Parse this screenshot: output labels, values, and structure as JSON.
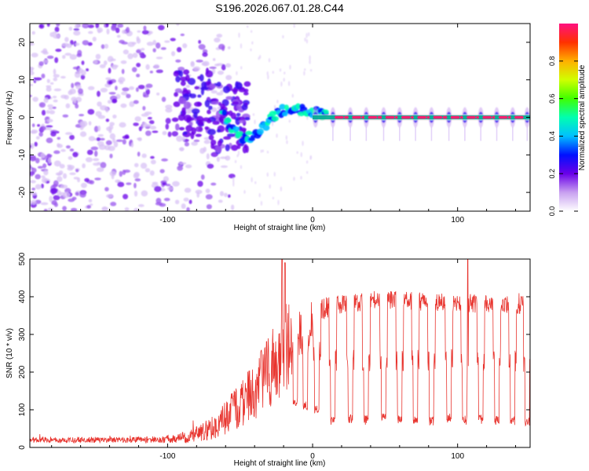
{
  "title": "S196.2026.067.01.28.C44",
  "chart_data": [
    {
      "type": "heatmap",
      "name": "spectrogram",
      "xlabel": "Height of straight line (km)",
      "ylabel": "Frequency (Hz)",
      "xlim": [
        -195,
        150
      ],
      "ylim": [
        -25,
        25
      ],
      "xticks": [
        -100,
        0,
        100
      ],
      "yticks": [
        -20,
        -10,
        0,
        10,
        20
      ],
      "colorbar": {
        "label": "Normalized spectral amplitude",
        "range": [
          0,
          1
        ],
        "ticks": [
          0.0,
          0.2,
          0.4,
          0.6,
          0.8
        ]
      },
      "regions": [
        {
          "description": "scattered purple noise",
          "x_from": -195,
          "x_to": -60,
          "freq_from": -25,
          "freq_to": 25,
          "amplitude": 0.1
        },
        {
          "description": "blue clustered blobs",
          "x_from": -95,
          "x_to": -45,
          "freq_from": -10,
          "freq_to": 10,
          "amplitude": 0.2
        },
        {
          "description": "descending/rising signal",
          "x_from": -60,
          "x_to": -10,
          "freq_from": -8,
          "freq_to": 3,
          "amplitude": 0.45
        },
        {
          "description": "steady signal line near 0 Hz",
          "x_from": 0,
          "x_to": 150,
          "freq_from": -1,
          "freq_to": 1,
          "amplitude": 0.95
        }
      ]
    },
    {
      "type": "line",
      "name": "snr",
      "xlabel": "Height of straight line (km)",
      "ylabel": "SNR (10 * v/v)",
      "xlim": [
        -195,
        150
      ],
      "ylim": [
        0,
        500
      ],
      "xticks": [
        -100,
        0,
        100
      ],
      "yticks": [
        0,
        100,
        200,
        300,
        400,
        500
      ],
      "series": [
        {
          "name": "SNR",
          "color": "#e8352f",
          "x": [
            -195,
            -180,
            -160,
            -140,
            -120,
            -100,
            -90,
            -80,
            -70,
            -60,
            -50,
            -40,
            -30,
            -25,
            -20,
            -15,
            -10,
            -5,
            0,
            10,
            20,
            30,
            40,
            60,
            80,
            100,
            120,
            140,
            150
          ],
          "y_base": [
            20,
            20,
            20,
            20,
            20,
            22,
            25,
            35,
            50,
            80,
            110,
            150,
            200,
            230,
            260,
            280,
            300,
            320,
            340,
            370,
            380,
            385,
            390,
            390,
            385,
            385,
            380,
            380,
            375
          ],
          "noise_amplitude": [
            8,
            8,
            8,
            8,
            8,
            10,
            15,
            20,
            30,
            45,
            60,
            80,
            100,
            110,
            120,
            110,
            90,
            70,
            50,
            30,
            25,
            25,
            25,
            25,
            25,
            25,
            25,
            25,
            25
          ],
          "spikes": [
            {
              "x": -21,
              "y": 500
            },
            {
              "x": -19,
              "y": 490
            },
            {
              "x": 107,
              "y": 510
            }
          ],
          "dips": [
            {
              "x": -12,
              "y": 110
            },
            {
              "x": -5,
              "y": 100
            },
            {
              "x": 3,
              "y": 90
            },
            {
              "x": 14,
              "y": 60
            },
            {
              "x": 26,
              "y": 65
            },
            {
              "x": 37,
              "y": 60
            },
            {
              "x": 49,
              "y": 65
            },
            {
              "x": 60,
              "y": 60
            },
            {
              "x": 71,
              "y": 62
            },
            {
              "x": 82,
              "y": 58
            },
            {
              "x": 94,
              "y": 65
            },
            {
              "x": 105,
              "y": 60
            },
            {
              "x": 116,
              "y": 62
            },
            {
              "x": 127,
              "y": 60
            },
            {
              "x": 138,
              "y": 58
            },
            {
              "x": 148,
              "y": 55
            }
          ]
        }
      ]
    }
  ]
}
